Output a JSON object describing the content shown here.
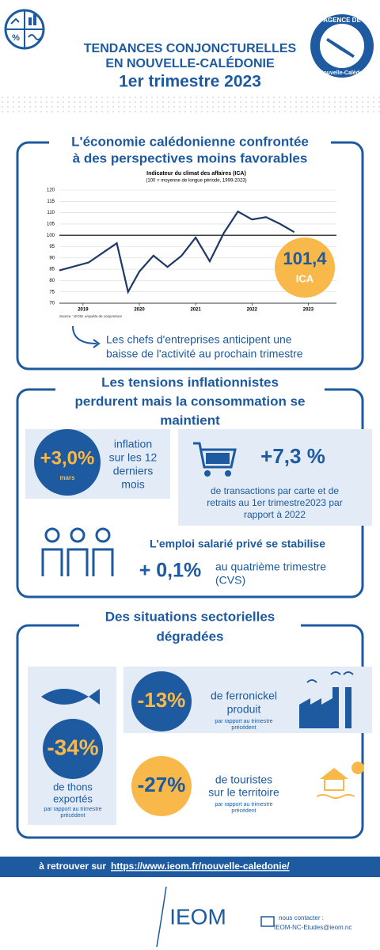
{
  "header": {
    "title_lines": [
      "TENDANCES CONJONCTURELLES",
      "EN NOUVELLE-CALÉDONIE"
    ],
    "period": "1er trimestre 2023",
    "logo_top": "AGENCE DE",
    "logo_bottom": "la Nouvelle-Calédonie"
  },
  "section1": {
    "heading": [
      "L'économie calédonienne confrontée",
      "à des perspectives moins favorables"
    ],
    "highlight_value": "101,4",
    "highlight_unit": "ICA",
    "caption": [
      "Les chefs d'entreprises anticipent une",
      "baisse de l'activité au prochain trimestre"
    ]
  },
  "chart_data": {
    "type": "line",
    "title": "Indicateur du climat des affaires (ICA)",
    "subtitle": "(100 = moyenne de longue période, 1999-2023)",
    "source": "Source : IEOM, enquête de conjoncture",
    "x": [
      2018.58,
      2019.1,
      2019.6,
      2019.8,
      2020.0,
      2020.25,
      2020.5,
      2020.75,
      2021.0,
      2021.25,
      2021.5,
      2021.75,
      2022.0,
      2022.25,
      2022.5,
      2022.75
    ],
    "values": [
      84.5,
      88,
      96.5,
      75,
      84,
      91,
      86,
      91,
      99,
      88.5,
      101,
      110.5,
      107,
      108,
      105,
      101.4
    ],
    "color": "#1f3864",
    "reference_line": 100,
    "xlim": [
      2018.58,
      2023.5
    ],
    "ylim": [
      70,
      120
    ],
    "xticks": [
      2019,
      2020,
      2021,
      2022,
      2023
    ],
    "yticks": [
      70,
      75,
      80,
      85,
      90,
      95,
      100,
      105,
      110,
      115,
      120
    ],
    "grid": true
  },
  "section2": {
    "heading": [
      "Les tensions inflationnistes",
      "perdurent mais la consommation se",
      "maintient"
    ],
    "inflation": {
      "value": "+3,0%",
      "month": "mars",
      "text": [
        "inflation",
        "sur les 12",
        "derniers",
        "mois"
      ]
    },
    "cards": {
      "value": "+7,3 %",
      "text": [
        "de transactions par carte et de",
        "retraits au 1er trimestre2023 par",
        "rapport à 2022"
      ]
    },
    "employment": {
      "heading": "L'emploi salarié privé se stabilise",
      "value": "+ 0,1%",
      "text": [
        "au quatrième trimestre",
        "(CVS)"
      ]
    }
  },
  "section3": {
    "heading": [
      "Des situations sectorielles",
      "dégradées"
    ],
    "tuna": {
      "value": "-34%",
      "text": [
        "de thons",
        "exportés"
      ],
      "note": [
        "par rapport au trimestre",
        "précédent"
      ]
    },
    "nickel": {
      "value": "-13%",
      "text": [
        "de ferronickel",
        "produit"
      ],
      "note": [
        "par rapport au trimestre",
        "précédent"
      ]
    },
    "tourism": {
      "value": "-27%",
      "text": [
        "de touristes",
        "sur le territoire"
      ],
      "note": [
        "par rapport au trimestre",
        "précédent"
      ]
    }
  },
  "footer": {
    "prefix": "à retrouver sur",
    "url": "https://www.ieom.fr/nouvelle-caledonie/",
    "logo": "IEOM",
    "contact_label": "nous contacter :",
    "email": "IEOM-NC-Etudes@ieom.nc"
  }
}
